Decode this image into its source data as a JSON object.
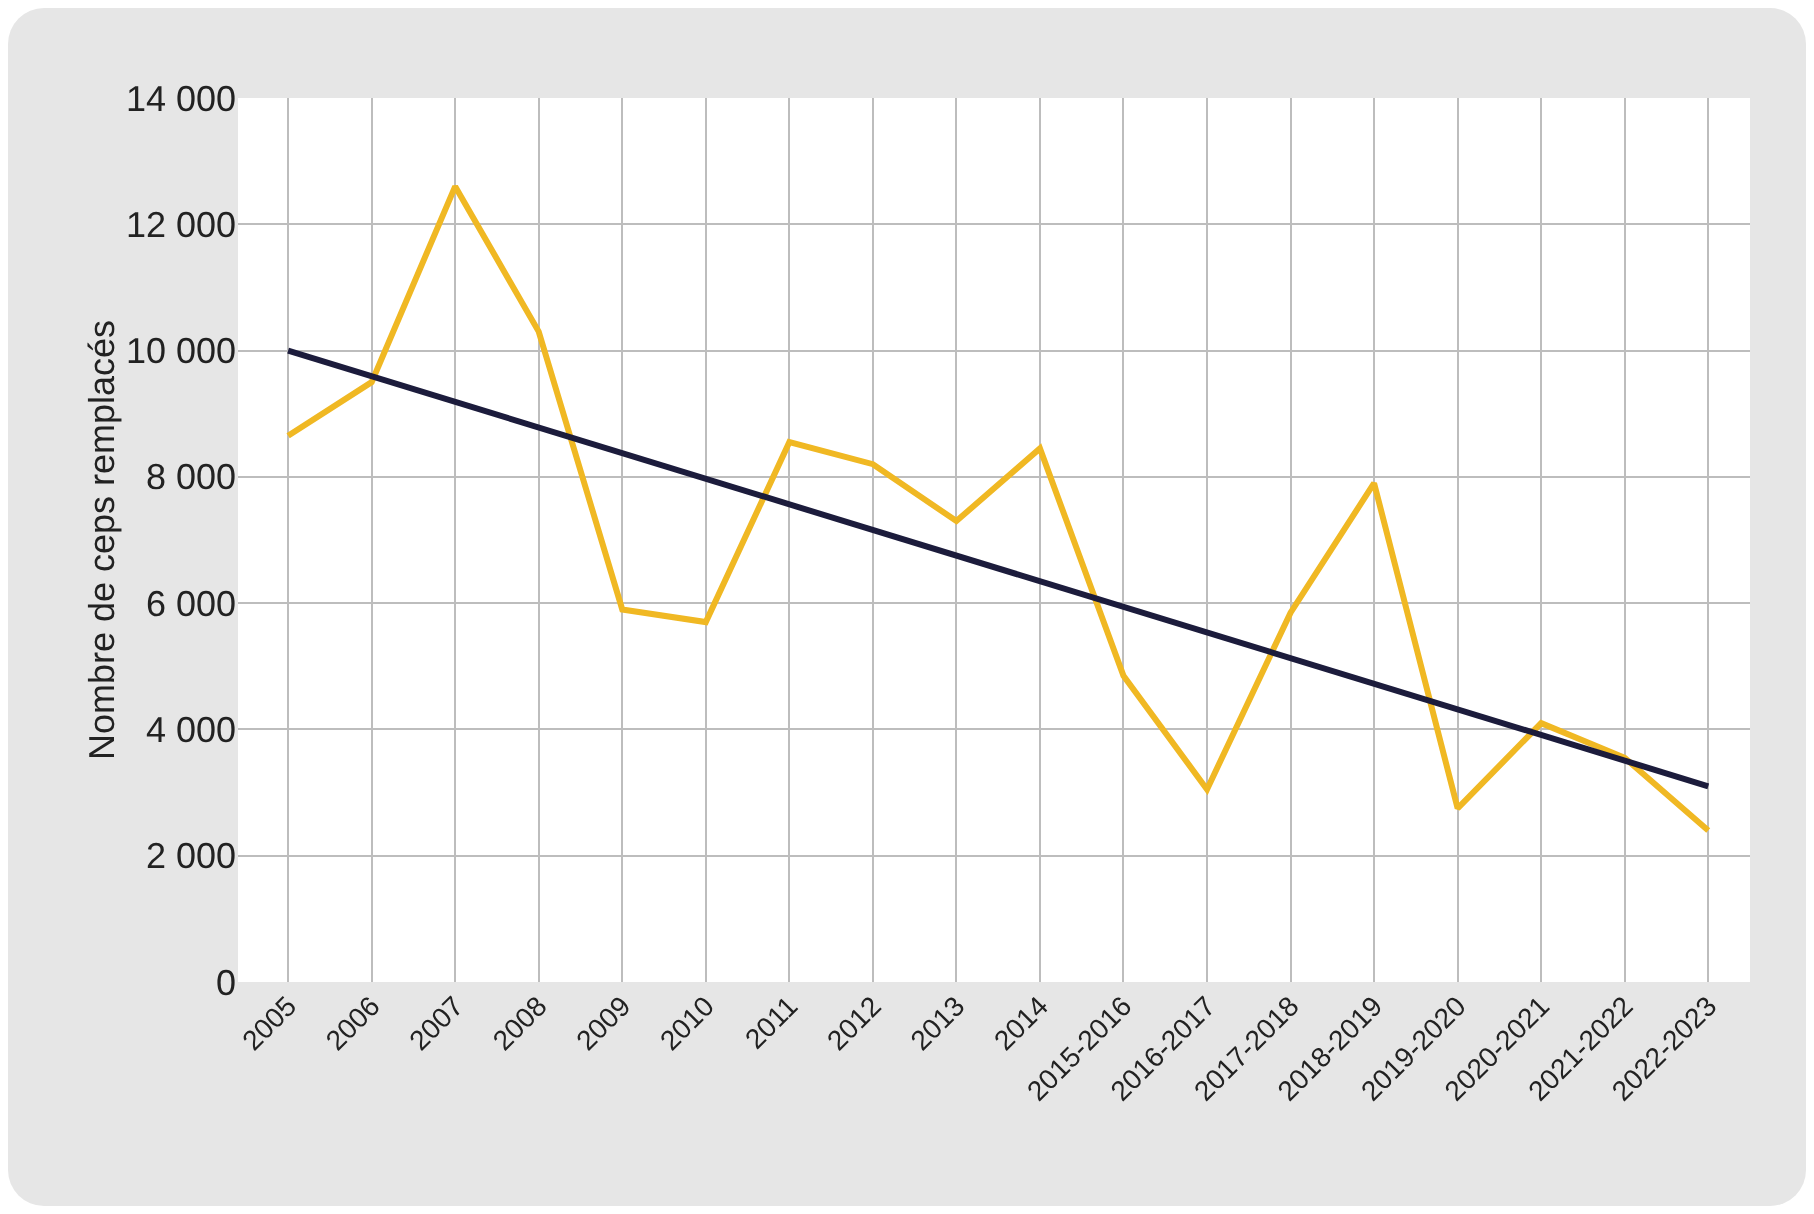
{
  "chart_data": {
    "type": "line",
    "ylabel": "Nombre de ceps remplacés",
    "categories": [
      "2005",
      "2006",
      "2007",
      "2008",
      "2009",
      "2010",
      "2011",
      "2012",
      "2013",
      "2014",
      "2015-2016",
      "2016-2017",
      "2017-2018",
      "2018-2019",
      "2019-2020",
      "2020-2021",
      "2021-2022",
      "2022-2023"
    ],
    "series": [
      {
        "color": "#f0b823",
        "values": [
          8650,
          9500,
          12600,
          10300,
          5900,
          5700,
          8550,
          8200,
          7300,
          8450,
          4850,
          3050,
          5850,
          7900,
          2750,
          4100,
          3550,
          2400
        ]
      },
      {
        "color": "#1c1c3c",
        "values": [
          10000,
          null,
          null,
          null,
          null,
          null,
          null,
          null,
          null,
          null,
          null,
          null,
          null,
          null,
          null,
          null,
          null,
          3100
        ]
      }
    ],
    "ylim": [
      0,
      14000
    ],
    "yticks": [
      {
        "value": 0,
        "label": "0"
      },
      {
        "value": 2000,
        "label": "2 000"
      },
      {
        "value": 4000,
        "label": "4 000"
      },
      {
        "value": 6000,
        "label": "6 000"
      },
      {
        "value": 8000,
        "label": "8 000"
      },
      {
        "value": 10000,
        "label": "10 000"
      },
      {
        "value": 12000,
        "label": "12 000"
      },
      {
        "value": 14000,
        "label": "14 000"
      }
    ],
    "grid": true,
    "marker": "none",
    "line_style": "solid"
  }
}
